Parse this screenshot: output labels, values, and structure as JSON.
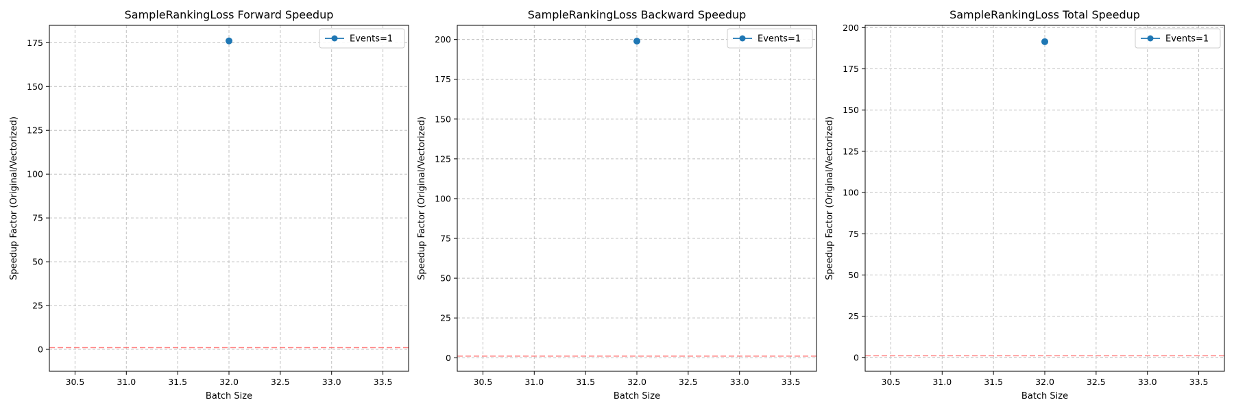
{
  "colors": {
    "series": "#1f77b4",
    "reference_line": "#ff6b6b",
    "grid": "#c0c0c0",
    "axes": "#000000",
    "legend_border": "#cccccc"
  },
  "chart_data": [
    {
      "type": "scatter",
      "title": "SampleRankingLoss Forward Speedup",
      "xlabel": "Batch Size",
      "ylabel": "Speedup Factor (Original/Vectorized)",
      "xlim": [
        30.25,
        33.75
      ],
      "ylim": [
        -12.5,
        184.9
      ],
      "xticks": [
        30.5,
        31.0,
        31.5,
        32.0,
        32.5,
        33.0,
        33.5
      ],
      "yticks": [
        0,
        25,
        50,
        75,
        100,
        125,
        150,
        175
      ],
      "grid": true,
      "legend_position": "top-right",
      "reference_line_y": 1,
      "series": [
        {
          "name": "Events=1",
          "x": [
            32.0
          ],
          "y": [
            176
          ]
        }
      ]
    },
    {
      "type": "scatter",
      "title": "SampleRankingLoss Backward Speedup",
      "xlabel": "Batch Size",
      "ylabel": "Speedup Factor (Original/Vectorized)",
      "xlim": [
        30.25,
        33.75
      ],
      "ylim": [
        -8.5,
        208.9
      ],
      "xticks": [
        30.5,
        31.0,
        31.5,
        32.0,
        32.5,
        33.0,
        33.5
      ],
      "yticks": [
        0,
        25,
        50,
        75,
        100,
        125,
        150,
        175,
        200
      ],
      "grid": true,
      "legend_position": "top-right",
      "reference_line_y": 1,
      "series": [
        {
          "name": "Events=1",
          "x": [
            32.0
          ],
          "y": [
            199
          ]
        }
      ]
    },
    {
      "type": "scatter",
      "title": "SampleRankingLoss Total Speedup",
      "xlabel": "Batch Size",
      "ylabel": "Speedup Factor (Original/Vectorized)",
      "xlim": [
        30.25,
        33.75
      ],
      "ylim": [
        -8.4,
        201.4
      ],
      "xticks": [
        30.5,
        31.0,
        31.5,
        32.0,
        32.5,
        33.0,
        33.5
      ],
      "yticks": [
        0,
        25,
        50,
        75,
        100,
        125,
        150,
        175,
        200
      ],
      "grid": true,
      "legend_position": "top-right",
      "reference_line_y": 1,
      "series": [
        {
          "name": "Events=1",
          "x": [
            32.0
          ],
          "y": [
            191.5
          ]
        }
      ]
    }
  ]
}
